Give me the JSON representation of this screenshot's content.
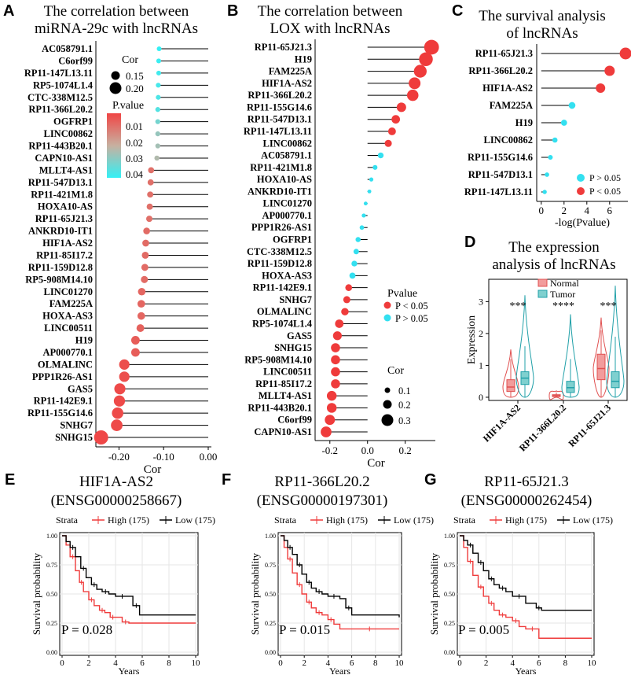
{
  "figure_labels": {
    "A": "A",
    "B": "B",
    "C": "C",
    "D": "D",
    "E": "E",
    "F": "F",
    "G": "G"
  },
  "colors": {
    "red": "#EF3B3B",
    "cyan": "#33E0F0",
    "black": "#000000",
    "normal_fill": "#F29C9C",
    "normal_line": "#E05050",
    "tumor_fill": "#7FD0CF",
    "tumor_line": "#20A0A8"
  },
  "chart_data": [
    {
      "id": "A",
      "type": "lollipop",
      "title_line1": "The correlation between",
      "title_line2": "miRNA-29c with lncRNAs",
      "xlabel": "Cor",
      "xlim": [
        -0.25,
        0.0
      ],
      "xticks": [
        -0.2,
        -0.1,
        0.0
      ],
      "xtick_labels": [
        "-0.20",
        "-0.10",
        "0.00"
      ],
      "legend_cor_title": "Cor",
      "legend_cor_items": [
        "0.15",
        "0.20"
      ],
      "legend_p_title": "P.value",
      "legend_p_ticks": [
        "0.01",
        "0.02",
        "0.03",
        "0.04"
      ],
      "genes": [
        "AC058791.1",
        "C6orf99",
        "RP11-147L13.11",
        "RP5-1074L1.4",
        "CTC-338M12.5",
        "RP11-366L20.2",
        "OGFRP1",
        "LINC00862",
        "RP11-443B20.1",
        "CAPN10-AS1",
        "MLLT4-AS1",
        "RP11-547D13.1",
        "RP11-421M1.8",
        "HOXA10-AS",
        "RP11-65J21.3",
        "ANKRD10-IT1",
        "HIF1A-AS2",
        "RP11-85I17.2",
        "RP11-159D12.8",
        "RP5-908M14.10",
        "LINC01270",
        "FAM225A",
        "HOXA-AS3",
        "LINC00511",
        "H19",
        "AP000770.1",
        "OLMALINC",
        "PPP1R26-AS1",
        "GAS5",
        "RP11-142E9.1",
        "RP11-155G14.6",
        "SNHG7",
        "SNHG15"
      ],
      "values": [
        -0.11,
        -0.111,
        -0.111,
        -0.112,
        -0.112,
        -0.113,
        -0.113,
        -0.113,
        -0.113,
        -0.115,
        -0.128,
        -0.129,
        -0.13,
        -0.131,
        -0.132,
        -0.138,
        -0.14,
        -0.141,
        -0.142,
        -0.143,
        -0.149,
        -0.15,
        -0.15,
        -0.152,
        -0.163,
        -0.163,
        -0.188,
        -0.188,
        -0.198,
        -0.199,
        -0.203,
        -0.205,
        -0.24
      ],
      "pvalues": [
        0.045,
        0.044,
        0.043,
        0.042,
        0.041,
        0.04,
        0.035,
        0.03,
        0.028,
        0.026,
        0.009,
        0.009,
        0.009,
        0.009,
        0.009,
        0.008,
        0.008,
        0.008,
        0.008,
        0.008,
        0.007,
        0.007,
        0.007,
        0.006,
        0.005,
        0.005,
        0.002,
        0.002,
        0.001,
        0.001,
        0.001,
        0.001,
        0.0005
      ]
    },
    {
      "id": "B",
      "type": "lollipop",
      "title_line1": "The correlation between",
      "title_line2": "LOX with lncRNAs",
      "xlabel": "Cor",
      "xlim": [
        -0.27,
        0.36
      ],
      "xticks": [
        -0.2,
        0.0,
        0.2
      ],
      "xtick_labels": [
        "-0.2",
        "0.0",
        "0.2"
      ],
      "legend_p_title": "Pvalue",
      "legend_p_items": [
        "P < 0.05",
        "P > 0.05"
      ],
      "legend_cor_title": "Cor",
      "legend_cor_items": [
        "0.1",
        "0.2",
        "0.3"
      ],
      "genes": [
        "RP11-65J21.3",
        "H19",
        "FAM225A",
        "HIF1A-AS2",
        "RP11-366L20.2",
        "RP11-155G14.6",
        "RP11-547D13.1",
        "RP11-147L13.11",
        "LINC00862",
        "AC058791.1",
        "RP11-421M1.8",
        "HOXA10-AS",
        "ANKRD10-IT1",
        "LINC01270",
        "AP000770.1",
        "PPP1R26-AS1",
        "OGFRP1",
        "CTC-338M12.5",
        "RP11-159D12.8",
        "HOXA-AS3",
        "RP11-142E9.1",
        "SNHG7",
        "OLMALINC",
        "RP5-1074L1.4",
        "GAS5",
        "SNHG15",
        "RP5-908M14.10",
        "LINC00511",
        "RP11-85I17.2",
        "MLLT4-AS1",
        "RP11-443B20.1",
        "C6orf99",
        "CAPN10-AS1"
      ],
      "values": [
        0.34,
        0.31,
        0.28,
        0.25,
        0.24,
        0.18,
        0.15,
        0.13,
        0.11,
        0.07,
        0.04,
        0.02,
        0.01,
        -0.01,
        -0.02,
        -0.03,
        -0.05,
        -0.06,
        -0.07,
        -0.08,
        -0.1,
        -0.11,
        -0.12,
        -0.15,
        -0.16,
        -0.17,
        -0.17,
        -0.17,
        -0.17,
        -0.19,
        -0.19,
        -0.2,
        -0.22
      ],
      "sig": [
        1,
        1,
        1,
        1,
        1,
        1,
        1,
        1,
        1,
        0,
        0,
        0,
        0,
        0,
        0,
        0,
        0,
        0,
        0,
        0,
        1,
        1,
        1,
        1,
        1,
        1,
        1,
        1,
        1,
        1,
        1,
        1,
        1
      ]
    },
    {
      "id": "C",
      "type": "lollipop",
      "title_line1": "The survival analysis",
      "title_line2": "of lncRNAs",
      "xlabel": "-log(Pvalue)",
      "xlim": [
        -0.4,
        7.6
      ],
      "xticks": [
        0,
        2,
        4,
        6
      ],
      "xtick_labels": [
        "0",
        "2",
        "4",
        "6"
      ],
      "legend_items": [
        "P > 0.05",
        "P < 0.05"
      ],
      "genes": [
        "RP11-65J21.3",
        "RP11-366L20.2",
        "HIF1A-AS2",
        "FAM225A",
        "H19",
        "LINC00862",
        "RP11-155G14.6",
        "RP11-547D13.1",
        "RP11-147L13.11"
      ],
      "values": [
        7.4,
        6.0,
        5.2,
        2.7,
        2.0,
        1.2,
        0.8,
        0.5,
        0.3
      ],
      "sig": [
        1,
        1,
        1,
        0,
        0,
        0,
        0,
        0,
        0
      ]
    },
    {
      "id": "D",
      "type": "violin-box",
      "title_line1": "The expression",
      "title_line2": "analysis of lncRNAs",
      "ylabel": "Expression",
      "ylim": [
        -0.1,
        3.7
      ],
      "yticks": [
        "0",
        "1",
        "2",
        "3"
      ],
      "legend_items": [
        "Normal",
        "Tumor"
      ],
      "categories": [
        "HIF1A-AS2",
        "RP11-366L20.2",
        "RP11-65J21.3"
      ],
      "significance": [
        "***",
        "****",
        "***"
      ],
      "normal": [
        {
          "min": 0.0,
          "q1": 0.18,
          "median": 0.32,
          "q3": 0.55,
          "max": 1.2,
          "top": 1.5
        },
        {
          "min": 0.0,
          "q1": 0.02,
          "median": 0.05,
          "q3": 0.08,
          "max": 0.15,
          "top": 0.2
        },
        {
          "min": 0.0,
          "q1": 0.55,
          "median": 0.9,
          "q3": 1.35,
          "max": 2.1,
          "top": 2.5
        }
      ],
      "tumor": [
        {
          "min": 0.0,
          "q1": 0.4,
          "median": 0.6,
          "q3": 0.8,
          "max": 1.6,
          "top": 3.2
        },
        {
          "min": 0.0,
          "q1": 0.15,
          "median": 0.3,
          "q3": 0.5,
          "max": 1.2,
          "top": 2.6
        },
        {
          "min": 0.0,
          "q1": 0.3,
          "median": 0.5,
          "q3": 0.8,
          "max": 1.9,
          "top": 3.5
        }
      ]
    },
    {
      "id": "E",
      "type": "km-survival",
      "title_line1": "HIF1A-AS2",
      "title_line2": "(ENSG00000258667)",
      "strata_label": "Strata",
      "high_label": "High (175)",
      "low_label": "Low (175)",
      "ylabel": "Survival probability",
      "xlabel": "Years",
      "xticks": [
        "0",
        "2",
        "4",
        "6",
        "8",
        "10"
      ],
      "yticks": [
        "0.00",
        "0.25",
        "0.50",
        "0.75",
        "1.00"
      ],
      "pvalue": "P = 0.028",
      "high": [
        [
          0,
          1
        ],
        [
          0.3,
          0.92
        ],
        [
          0.6,
          0.82
        ],
        [
          1,
          0.7
        ],
        [
          1.3,
          0.6
        ],
        [
          1.6,
          0.52
        ],
        [
          2,
          0.45
        ],
        [
          2.4,
          0.4
        ],
        [
          2.8,
          0.36
        ],
        [
          3.2,
          0.34
        ],
        [
          3.6,
          0.3
        ],
        [
          4,
          0.3
        ],
        [
          4.5,
          0.26
        ],
        [
          5,
          0.25
        ],
        [
          10,
          0.25
        ]
      ],
      "low": [
        [
          0,
          1
        ],
        [
          0.3,
          0.95
        ],
        [
          0.6,
          0.9
        ],
        [
          1,
          0.82
        ],
        [
          1.4,
          0.72
        ],
        [
          1.8,
          0.64
        ],
        [
          2.2,
          0.58
        ],
        [
          2.6,
          0.54
        ],
        [
          3,
          0.52
        ],
        [
          3.5,
          0.5
        ],
        [
          4,
          0.48
        ],
        [
          5,
          0.48
        ],
        [
          5.3,
          0.4
        ],
        [
          5.8,
          0.32
        ],
        [
          10,
          0.32
        ]
      ]
    },
    {
      "id": "F",
      "type": "km-survival",
      "title_line1": "RP11-366L20.2",
      "title_line2": "(ENSG00000197301)",
      "strata_label": "Strata",
      "high_label": "High (175)",
      "low_label": "Low (175)",
      "ylabel": "Survival probability",
      "xlabel": "Years",
      "xticks": [
        "0",
        "2",
        "4",
        "6",
        "8",
        "10"
      ],
      "yticks": [
        "0.00",
        "0.25",
        "0.50",
        "0.75",
        "1.00"
      ],
      "pvalue": "P = 0.015",
      "high": [
        [
          0,
          1
        ],
        [
          0.3,
          0.9
        ],
        [
          0.6,
          0.8
        ],
        [
          1,
          0.68
        ],
        [
          1.4,
          0.58
        ],
        [
          1.8,
          0.5
        ],
        [
          2.2,
          0.43
        ],
        [
          2.6,
          0.38
        ],
        [
          3,
          0.34
        ],
        [
          3.5,
          0.32
        ],
        [
          4,
          0.28
        ],
        [
          4.5,
          0.24
        ],
        [
          5,
          0.2
        ],
        [
          10,
          0.2
        ]
      ],
      "low": [
        [
          0,
          1
        ],
        [
          0.3,
          0.96
        ],
        [
          0.6,
          0.9
        ],
        [
          1,
          0.84
        ],
        [
          1.4,
          0.75
        ],
        [
          1.8,
          0.67
        ],
        [
          2.2,
          0.6
        ],
        [
          2.6,
          0.55
        ],
        [
          3,
          0.52
        ],
        [
          3.5,
          0.5
        ],
        [
          4,
          0.48
        ],
        [
          5,
          0.46
        ],
        [
          5.5,
          0.38
        ],
        [
          6,
          0.32
        ],
        [
          10,
          0.3
        ]
      ]
    },
    {
      "id": "G",
      "type": "km-survival",
      "title_line1": "RP11-65J21.3",
      "title_line2": "(ENSG00000262454)",
      "strata_label": "Strata",
      "high_label": "High (175)",
      "low_label": "Low (175)",
      "ylabel": "Survival probability",
      "xlabel": "Years",
      "xticks": [
        "0",
        "2",
        "4",
        "6",
        "8",
        "10"
      ],
      "yticks": [
        "0.00",
        "0.25",
        "0.50",
        "0.75",
        "1.00"
      ],
      "pvalue": "P = 0.005",
      "high": [
        [
          0,
          1
        ],
        [
          0.3,
          0.9
        ],
        [
          0.6,
          0.78
        ],
        [
          1,
          0.66
        ],
        [
          1.4,
          0.56
        ],
        [
          1.8,
          0.48
        ],
        [
          2.2,
          0.42
        ],
        [
          2.6,
          0.36
        ],
        [
          3,
          0.32
        ],
        [
          3.5,
          0.3
        ],
        [
          4,
          0.27
        ],
        [
          4.5,
          0.22
        ],
        [
          5,
          0.2
        ],
        [
          6,
          0.12
        ],
        [
          10,
          0.12
        ]
      ],
      "low": [
        [
          0,
          1
        ],
        [
          0.3,
          0.96
        ],
        [
          0.6,
          0.92
        ],
        [
          1,
          0.85
        ],
        [
          1.4,
          0.77
        ],
        [
          1.8,
          0.7
        ],
        [
          2.2,
          0.63
        ],
        [
          2.6,
          0.58
        ],
        [
          3,
          0.55
        ],
        [
          3.5,
          0.52
        ],
        [
          4,
          0.48
        ],
        [
          5,
          0.42
        ],
        [
          5.8,
          0.38
        ],
        [
          6.2,
          0.36
        ],
        [
          10,
          0.36
        ]
      ]
    }
  ]
}
